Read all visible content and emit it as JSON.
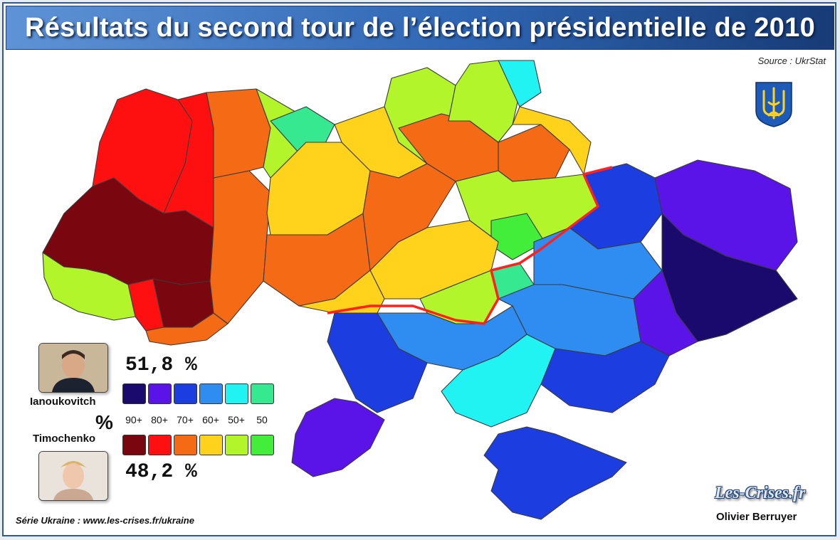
{
  "title": "Résultats du second tour de l’élection présidentielle de 2010",
  "source": "Source : UkrStat",
  "legend": {
    "yanukovych": {
      "name": "Ianoukovitch",
      "percent": "51,8 %"
    },
    "tymoshenko": {
      "name": "Timochenko",
      "percent": "48,2 %"
    },
    "percent_sign": "%",
    "ticks": [
      "90+",
      "80+",
      "70+",
      "60+",
      "50+",
      "50"
    ],
    "blue_scale": [
      "#1a0a6e",
      "#5a14e8",
      "#1c3ee0",
      "#2f8cf0",
      "#21f2f2",
      "#36e890"
    ],
    "red_scale": [
      "#7a0610",
      "#ff1010",
      "#f56a14",
      "#ffd21c",
      "#b2f52a",
      "#42ee3a"
    ]
  },
  "footer": {
    "series": "Série Ukraine :  www.les-crises.fr/ukraine",
    "brand": "Les-Crises.fr",
    "author": "Olivier Berruyer"
  }
}
